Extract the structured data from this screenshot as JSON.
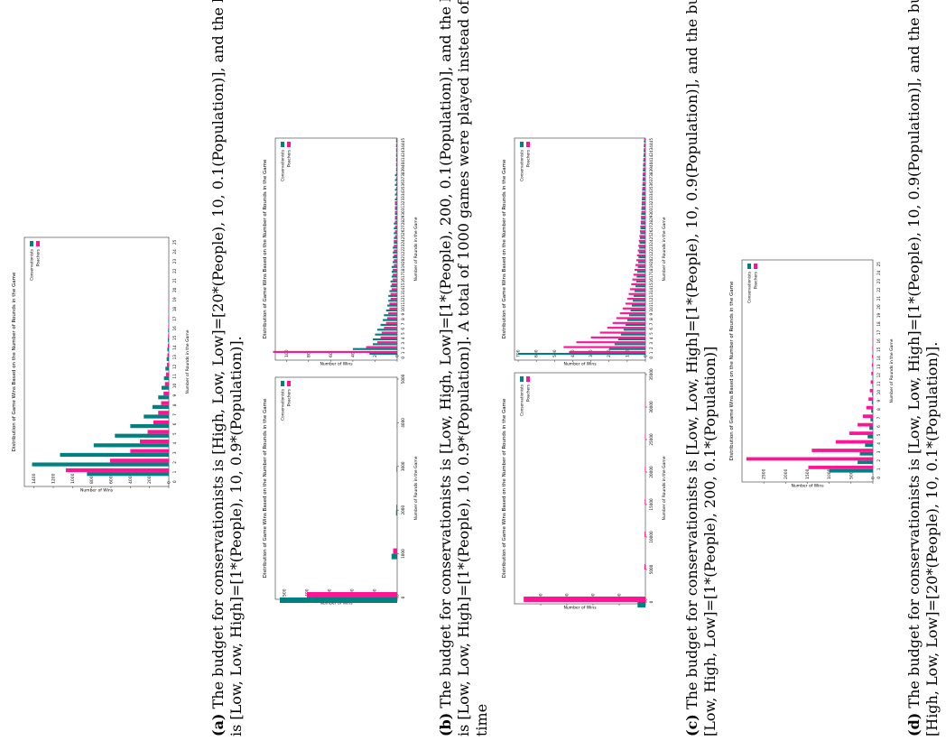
{
  "captions": {
    "a": {
      "tag": "(a)",
      "line1": "The budget for conservationists is [High, Low, Low]=[20*(People), 10, 0.1(Population)], and the budget for poachers",
      "line2": "is [Low, Low, High]=[1*(People), 10, 0.9*(Population)]."
    },
    "b": {
      "tag": "(b)",
      "line1": "The budget for conservationists is [Low, High, Low]=[1*(People), 200, 0.1(Population)], and the budget for poachers",
      "line2": "is [Low, Low, High]=[1*(People), 10, 0.9*(Population)].  A total of 1000 games were played instead of 10,000 due to run",
      "line3": "time"
    },
    "c": {
      "tag": "(c)",
      "line1": "The budget for conservationists is [Low, Low, High]=[1*(People), 10, 0.9(Population)], and the budget for poachers is",
      "line2": "[Low, High, Low]=[1*(People), 200, 0.1*(Population)]"
    },
    "d": {
      "tag": "(d)",
      "line1": "The budget for conservationists is [Low, Low, High]=[1*(People), 10, 0.9(Population)], and the budget for poachers is",
      "line2": "[High, Low, Low]=[20*(People), 10, 0.1*(Population)]."
    }
  },
  "colors": {
    "conservationists": "#008080",
    "poachers": "#ff1493"
  },
  "chart_data": [
    {
      "id": "a",
      "type": "bar",
      "title": "Distribution of Game Wins Based on the Number of Rounds in the Game",
      "xlabel": "Number of Rounds in the Game",
      "ylabel": "Number of Wins",
      "categories": [
        0,
        1,
        2,
        3,
        4,
        5,
        6,
        7,
        8,
        9,
        10,
        11,
        12,
        13,
        14,
        15,
        16,
        17,
        18,
        19,
        20,
        21,
        22,
        23,
        24,
        25
      ],
      "ylim": [
        0,
        1500
      ],
      "yticks": [
        0,
        200,
        400,
        600,
        800,
        1000,
        1200,
        1400
      ],
      "legend": "top-right",
      "series": [
        {
          "name": "Conservationists",
          "values": [
            0,
            850,
            1420,
            1130,
            780,
            560,
            400,
            260,
            170,
            110,
            75,
            50,
            35,
            22,
            15,
            10,
            7,
            5,
            3,
            2,
            2,
            1,
            1,
            1,
            0,
            0
          ]
        },
        {
          "name": "Poachers",
          "values": [
            0,
            1070,
            610,
            400,
            300,
            220,
            160,
            110,
            80,
            55,
            40,
            28,
            20,
            14,
            10,
            7,
            5,
            4,
            3,
            2,
            1,
            1,
            1,
            0,
            0,
            0
          ]
        }
      ]
    },
    {
      "id": "b1",
      "type": "bar",
      "title": "Distribution of Game Wins Based on the Number of Rounds in the Game",
      "xlabel": "Number of Rounds in the Game",
      "ylabel": "Number of Wins",
      "xlim": [
        0,
        5000
      ],
      "xticks": [
        0,
        1000,
        2000,
        3000,
        4000,
        5000
      ],
      "ylim": [
        0,
        540
      ],
      "yticks": [
        0,
        100,
        200,
        300,
        400,
        500
      ],
      "legend": "top-right",
      "series": [
        {
          "name": "Conservationists",
          "points": [
            [
              0,
              520
            ],
            [
              1000,
              25
            ],
            [
              2000,
              5
            ],
            [
              3000,
              3
            ],
            [
              4000,
              2
            ]
          ]
        },
        {
          "name": "Poachers",
          "points": [
            [
              0,
              400
            ],
            [
              1000,
              18
            ],
            [
              2000,
              4
            ],
            [
              3000,
              2
            ],
            [
              4000,
              1
            ]
          ]
        }
      ]
    },
    {
      "id": "b2",
      "type": "bar",
      "title": "Distribution of Game Wins Based on the Number of Rounds in the Game",
      "xlabel": "Number of Rounds in the Game",
      "ylabel": "Number of Wins",
      "categories": [
        0,
        1,
        2,
        3,
        4,
        5,
        6,
        7,
        8,
        9,
        10,
        11,
        12,
        13,
        14,
        15,
        16,
        17,
        18,
        19,
        20,
        21,
        22,
        23,
        24,
        25,
        26,
        27,
        28,
        29,
        30,
        31,
        32,
        33,
        34,
        35,
        36,
        37,
        38,
        39,
        40,
        41,
        42,
        43,
        44,
        45
      ],
      "ylim": [
        0,
        110
      ],
      "yticks": [
        0,
        20,
        40,
        60,
        80,
        100
      ],
      "legend": "top-right",
      "series": [
        {
          "name": "Conservationists",
          "values": [
            0,
            25,
            40,
            22,
            22,
            20,
            18,
            15,
            13,
            12,
            10,
            9,
            8,
            8,
            7,
            6,
            6,
            5,
            5,
            5,
            4,
            4,
            4,
            4,
            3,
            3,
            3,
            3,
            3,
            2,
            2,
            2,
            2,
            2,
            2,
            2,
            2,
            2,
            2,
            1,
            1,
            1,
            1,
            1,
            1,
            1
          ]
        },
        {
          "name": "Poachers",
          "values": [
            0,
            112,
            28,
            18,
            15,
            14,
            12,
            10,
            9,
            8,
            7,
            7,
            6,
            6,
            5,
            5,
            4,
            4,
            4,
            3,
            3,
            3,
            3,
            3,
            3,
            2,
            2,
            2,
            2,
            2,
            2,
            2,
            2,
            1,
            1,
            1,
            1,
            1,
            1,
            1,
            1,
            1,
            1,
            1,
            1,
            1
          ]
        }
      ]
    },
    {
      "id": "c1",
      "type": "bar",
      "title": "Distribution of Game Wins Based on the Number of Rounds in the Game",
      "xlabel": "Number of Rounds in the Game",
      "ylabel": "Number of Wins",
      "xlim": [
        0,
        35000
      ],
      "xticks": [
        0,
        5000,
        10000,
        15000,
        20000,
        25000,
        30000,
        35000
      ],
      "ylim": [
        0,
        1000
      ],
      "yticks": [
        0,
        200,
        400,
        600,
        800
      ],
      "legend": "top-right",
      "series": [
        {
          "name": "Conservationists",
          "points": [
            [
              0,
              60
            ]
          ]
        },
        {
          "name": "Poachers",
          "points": [
            [
              0,
              930
            ],
            [
              5000,
              8
            ],
            [
              10000,
              6
            ],
            [
              15000,
              5
            ],
            [
              20000,
              4
            ],
            [
              25000,
              3
            ],
            [
              30000,
              2
            ]
          ]
        }
      ]
    },
    {
      "id": "c2",
      "type": "bar",
      "title": "Distribution of Game Wins Based on the Number of Rounds in the Game",
      "xlabel": "Number of Rounds in the Game",
      "ylabel": "Number of Wins",
      "categories": [
        0,
        1,
        2,
        3,
        4,
        5,
        6,
        7,
        8,
        9,
        10,
        11,
        12,
        13,
        14,
        15,
        16,
        17,
        18,
        19,
        20,
        21,
        22,
        23,
        24,
        25,
        26,
        27,
        28,
        29,
        30,
        31,
        32,
        33,
        34,
        35,
        36,
        37,
        38,
        39,
        40,
        41,
        42,
        43,
        44,
        45
      ],
      "ylim": [
        0,
        720
      ],
      "yticks": [
        0,
        100,
        200,
        300,
        400,
        500,
        600,
        700
      ],
      "legend": "top-right",
      "series": [
        {
          "name": "Conservationists",
          "values": [
            0,
            700,
            200,
            170,
            150,
            135,
            120,
            110,
            100,
            90,
            82,
            75,
            70,
            65,
            60,
            55,
            50,
            48,
            45,
            42,
            40,
            38,
            36,
            34,
            32,
            30,
            28,
            27,
            25,
            24,
            23,
            22,
            21,
            20,
            19,
            18,
            17,
            16,
            15,
            14,
            13,
            12,
            11,
            10,
            9,
            8
          ]
        },
        {
          "name": "Poachers",
          "values": [
            0,
            420,
            450,
            380,
            300,
            250,
            210,
            180,
            160,
            140,
            125,
            110,
            100,
            92,
            85,
            78,
            72,
            66,
            60,
            55,
            50,
            46,
            42,
            39,
            36,
            33,
            30,
            28,
            26,
            24,
            22,
            21,
            20,
            19,
            18,
            17,
            16,
            15,
            14,
            13,
            12,
            11,
            10,
            9,
            8,
            7
          ]
        }
      ]
    },
    {
      "id": "d",
      "type": "bar",
      "title": "Distribution of Game Wins Based on the Number of Rounds in the Game",
      "xlabel": "Number of Rounds in the Game",
      "ylabel": "Number of Wins",
      "categories": [
        0,
        1,
        2,
        3,
        4,
        5,
        6,
        7,
        8,
        9,
        10,
        11,
        12,
        13,
        14,
        15,
        16,
        17,
        18,
        19,
        20,
        21,
        22,
        23,
        24,
        25
      ],
      "ylim": [
        0,
        3000
      ],
      "yticks": [
        0,
        500,
        1000,
        1500,
        2000,
        2500
      ],
      "legend": "top-right",
      "series": [
        {
          "name": "Conservationists",
          "values": [
            0,
            1000,
            350,
            300,
            180,
            120,
            80,
            55,
            38,
            25,
            18,
            12,
            8,
            6,
            4,
            3,
            2,
            2,
            1,
            1,
            1,
            0,
            0,
            0,
            0,
            0
          ]
        },
        {
          "name": "Poachers",
          "values": [
            0,
            1480,
            2900,
            1400,
            850,
            540,
            350,
            230,
            150,
            100,
            70,
            50,
            35,
            25,
            18,
            12,
            9,
            6,
            4,
            3,
            2,
            1,
            1,
            1,
            0,
            0
          ]
        }
      ]
    }
  ]
}
